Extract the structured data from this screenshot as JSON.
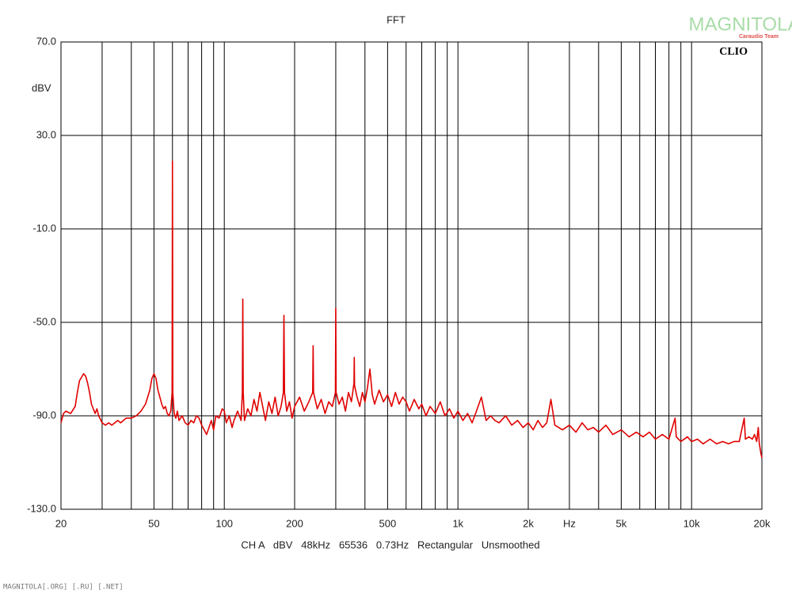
{
  "chart_data": {
    "type": "line",
    "title": "FFT",
    "brand": "CLIO",
    "y_unit_label": "dBV",
    "footer": "CH A   dBV   48kHz   65536   0.73Hz   Rectangular   Unsmoothed",
    "xscale": "log",
    "grid": true,
    "xlim": [
      20,
      20000
    ],
    "ylim": [
      -130,
      70
    ],
    "yticks": [
      {
        "value": 70,
        "label": "70.0"
      },
      {
        "value": 30,
        "label": "30.0"
      },
      {
        "value": -10,
        "label": "-10.0"
      },
      {
        "value": -50,
        "label": "-50.0"
      },
      {
        "value": -90,
        "label": "-90.0"
      },
      {
        "value": -130,
        "label": "-130.0"
      }
    ],
    "xticks": [
      20,
      50,
      100,
      200,
      500,
      {
        "value": 1000,
        "label": "1k"
      },
      {
        "value": 2000,
        "label": "2k"
      },
      {
        "value": 3000,
        "label": "Hz"
      },
      {
        "value": 5000,
        "label": "5k"
      },
      {
        "value": 10000,
        "label": "10k"
      },
      {
        "value": 20000,
        "label": "20k"
      }
    ],
    "xminor": [
      30,
      40,
      60,
      70,
      80,
      90,
      300,
      400,
      600,
      700,
      800,
      900,
      4000,
      6000,
      7000,
      8000,
      9000
    ],
    "x": [
      20,
      20.5,
      21,
      22,
      23,
      23.5,
      24,
      25,
      25.5,
      26,
      26.5,
      27,
      28,
      28.5,
      29,
      30,
      31,
      32,
      33,
      34,
      35,
      36,
      37,
      38,
      40,
      42,
      44,
      46,
      48,
      49,
      50,
      51,
      52,
      54,
      55,
      56,
      57,
      58,
      59,
      59.8,
      60,
      60.2,
      61,
      62,
      63,
      64,
      66,
      68,
      70,
      72,
      74,
      76,
      78,
      80,
      82,
      84,
      86,
      88,
      90,
      92,
      95,
      98,
      100,
      102,
      105,
      108,
      110,
      114,
      118,
      119.5,
      120,
      120.5,
      122,
      126,
      130,
      134,
      138,
      142,
      146,
      150,
      155,
      160,
      165,
      170,
      175,
      179,
      180,
      181,
      185,
      190,
      195,
      200,
      210,
      220,
      230,
      239,
      240,
      241,
      250,
      260,
      270,
      280,
      290,
      299,
      300,
      301,
      310,
      320,
      330,
      340,
      350,
      359,
      360,
      361,
      370,
      380,
      390,
      400,
      410,
      420,
      430,
      440,
      460,
      480,
      500,
      520,
      540,
      560,
      580,
      600,
      620,
      650,
      680,
      700,
      730,
      760,
      800,
      840,
      880,
      920,
      960,
      1000,
      1050,
      1100,
      1150,
      1200,
      1260,
      1320,
      1380,
      1440,
      1500,
      1600,
      1700,
      1800,
      1900,
      2000,
      2100,
      2200,
      2300,
      2400,
      2500,
      2600,
      2800,
      3000,
      3200,
      3400,
      3600,
      3800,
      4000,
      4300,
      4600,
      5000,
      5400,
      5800,
      6200,
      6600,
      7000,
      7500,
      8000,
      8500,
      8600,
      9000,
      9600,
      10000,
      10600,
      11200,
      12000,
      12800,
      13600,
      14400,
      15200,
      16000,
      16800,
      17000,
      17600,
      18200,
      18600,
      19000,
      19300,
      19500,
      19800,
      20000
    ],
    "series": [
      {
        "color": "#e00000",
        "values": [
          -93,
          -89,
          -88,
          -89,
          -86,
          -80,
          -75,
          -72,
          -73,
          -76,
          -80,
          -85,
          -89,
          -87,
          -90,
          -93,
          -94,
          -93,
          -94,
          -93,
          -92,
          -93,
          -92,
          -91,
          -91,
          -90,
          -88,
          -85,
          -79,
          -74,
          -72,
          -74,
          -79,
          -85,
          -87,
          -86,
          -89,
          -90,
          -88,
          -80,
          19,
          -80,
          -89,
          -91,
          -88,
          -92,
          -90,
          -93,
          -94,
          -92,
          -93,
          -90,
          -91,
          -94,
          -96,
          -98,
          -95,
          -92,
          -96,
          -90,
          -91,
          -87,
          -88,
          -93,
          -90,
          -95,
          -92,
          -88,
          -92,
          -80,
          -40,
          -80,
          -92,
          -87,
          -90,
          -83,
          -88,
          -80,
          -86,
          -92,
          -84,
          -89,
          -82,
          -90,
          -86,
          -80,
          -47,
          -80,
          -88,
          -84,
          -91,
          -86,
          -82,
          -88,
          -84,
          -80,
          -60,
          -80,
          -87,
          -83,
          -89,
          -84,
          -86,
          -80,
          -44,
          -80,
          -85,
          -82,
          -88,
          -80,
          -84,
          -76,
          -65,
          -77,
          -82,
          -86,
          -80,
          -84,
          -78,
          -70,
          -81,
          -85,
          -79,
          -84,
          -81,
          -86,
          -80,
          -85,
          -82,
          -84,
          -88,
          -83,
          -87,
          -85,
          -90,
          -86,
          -89,
          -84,
          -90,
          -87,
          -91,
          -88,
          -92,
          -89,
          -93,
          -88,
          -82,
          -92,
          -90,
          -92,
          -93,
          -90,
          -94,
          -92,
          -95,
          -93,
          -96,
          -92,
          -95,
          -93,
          -83,
          -94,
          -96,
          -94,
          -97,
          -93,
          -96,
          -95,
          -97,
          -94,
          -98,
          -96,
          -99,
          -97,
          -99,
          -97,
          -100,
          -98,
          -100,
          -91,
          -99,
          -101,
          -99,
          -101,
          -100,
          -102,
          -100,
          -102,
          -101,
          -102,
          -101,
          -101,
          -91,
          -100,
          -99,
          -100,
          -98,
          -101,
          -95,
          -102,
          -106,
          -108
        ]
      }
    ]
  },
  "watermark": {
    "logo": "MAGNITOLA",
    "tagline": "Caraudio Team"
  },
  "footer_note": "MAGNITOLA[.ORG] [.RU] [.NET]"
}
